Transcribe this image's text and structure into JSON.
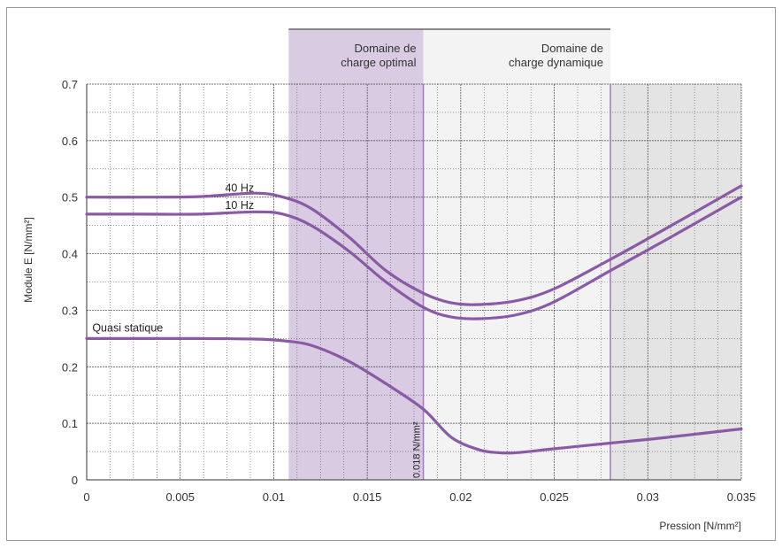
{
  "chart_data": {
    "type": "line",
    "title": "",
    "xlabel": "Pression [N/mm²]",
    "ylabel": "Module E [N/mm²]",
    "xlim": [
      0,
      0.035
    ],
    "ylim": [
      0,
      0.7
    ],
    "x_ticks": [
      "0",
      "0.005",
      "0.01",
      "0.015",
      "0.02",
      "0.025",
      "0.03",
      "0.035"
    ],
    "y_ticks": [
      "0",
      "0.1",
      "0.2",
      "0.3",
      "0.4",
      "0.5",
      "0.6",
      "0.7"
    ],
    "x_tick_values": [
      0,
      0.005,
      0.01,
      0.015,
      0.02,
      0.025,
      0.03,
      0.035
    ],
    "y_tick_values": [
      0,
      0.1,
      0.2,
      0.3,
      0.4,
      0.5,
      0.6,
      0.7
    ],
    "grid": true,
    "colors": {
      "series": "#8a5aa6",
      "region_optimal": "#d9cbe2",
      "region_dynamic": "#f2f3f2",
      "region_overload": "#e4e4e4",
      "divider": "#a27bbd"
    },
    "regions": [
      {
        "label": "Domaine de charge optimal",
        "label_lines": [
          "Domaine de",
          "charge optimal"
        ],
        "x_start": 0.0108,
        "x_end": 0.018,
        "fill": "#d9cbe2"
      },
      {
        "label": "Domaine de charge dynamique",
        "label_lines": [
          "Domaine de",
          "charge dynamique"
        ],
        "x_start": 0.018,
        "x_end": 0.028,
        "fill": "#f2f3f2"
      },
      {
        "label": "",
        "label_lines": [],
        "x_start": 0.028,
        "x_end": 0.035,
        "fill": "#e4e4e4"
      }
    ],
    "series": [
      {
        "name": "40 Hz",
        "x": [
          0,
          0.003,
          0.006,
          0.009,
          0.0105,
          0.012,
          0.014,
          0.016,
          0.018,
          0.0195,
          0.021,
          0.023,
          0.025,
          0.028,
          0.031,
          0.035
        ],
        "y": [
          0.5,
          0.5,
          0.501,
          0.507,
          0.5,
          0.48,
          0.43,
          0.37,
          0.33,
          0.313,
          0.31,
          0.317,
          0.338,
          0.39,
          0.445,
          0.52
        ]
      },
      {
        "name": "10 Hz",
        "x": [
          0,
          0.003,
          0.006,
          0.009,
          0.0105,
          0.012,
          0.014,
          0.016,
          0.018,
          0.0195,
          0.021,
          0.023,
          0.025,
          0.028,
          0.031,
          0.035
        ],
        "y": [
          0.47,
          0.47,
          0.47,
          0.474,
          0.47,
          0.45,
          0.405,
          0.35,
          0.305,
          0.288,
          0.285,
          0.292,
          0.315,
          0.37,
          0.425,
          0.5
        ]
      },
      {
        "name": "Quasi statique",
        "x": [
          0,
          0.003,
          0.006,
          0.009,
          0.0105,
          0.012,
          0.014,
          0.016,
          0.018,
          0.0195,
          0.021,
          0.022,
          0.023,
          0.025,
          0.028,
          0.031,
          0.035
        ],
        "y": [
          0.25,
          0.25,
          0.25,
          0.249,
          0.246,
          0.238,
          0.21,
          0.17,
          0.125,
          0.075,
          0.053,
          0.048,
          0.048,
          0.055,
          0.065,
          0.075,
          0.09
        ]
      }
    ],
    "annotations": [
      {
        "text": "0.018 N/mm²",
        "x": 0.018,
        "orientation": "vertical"
      }
    ]
  }
}
